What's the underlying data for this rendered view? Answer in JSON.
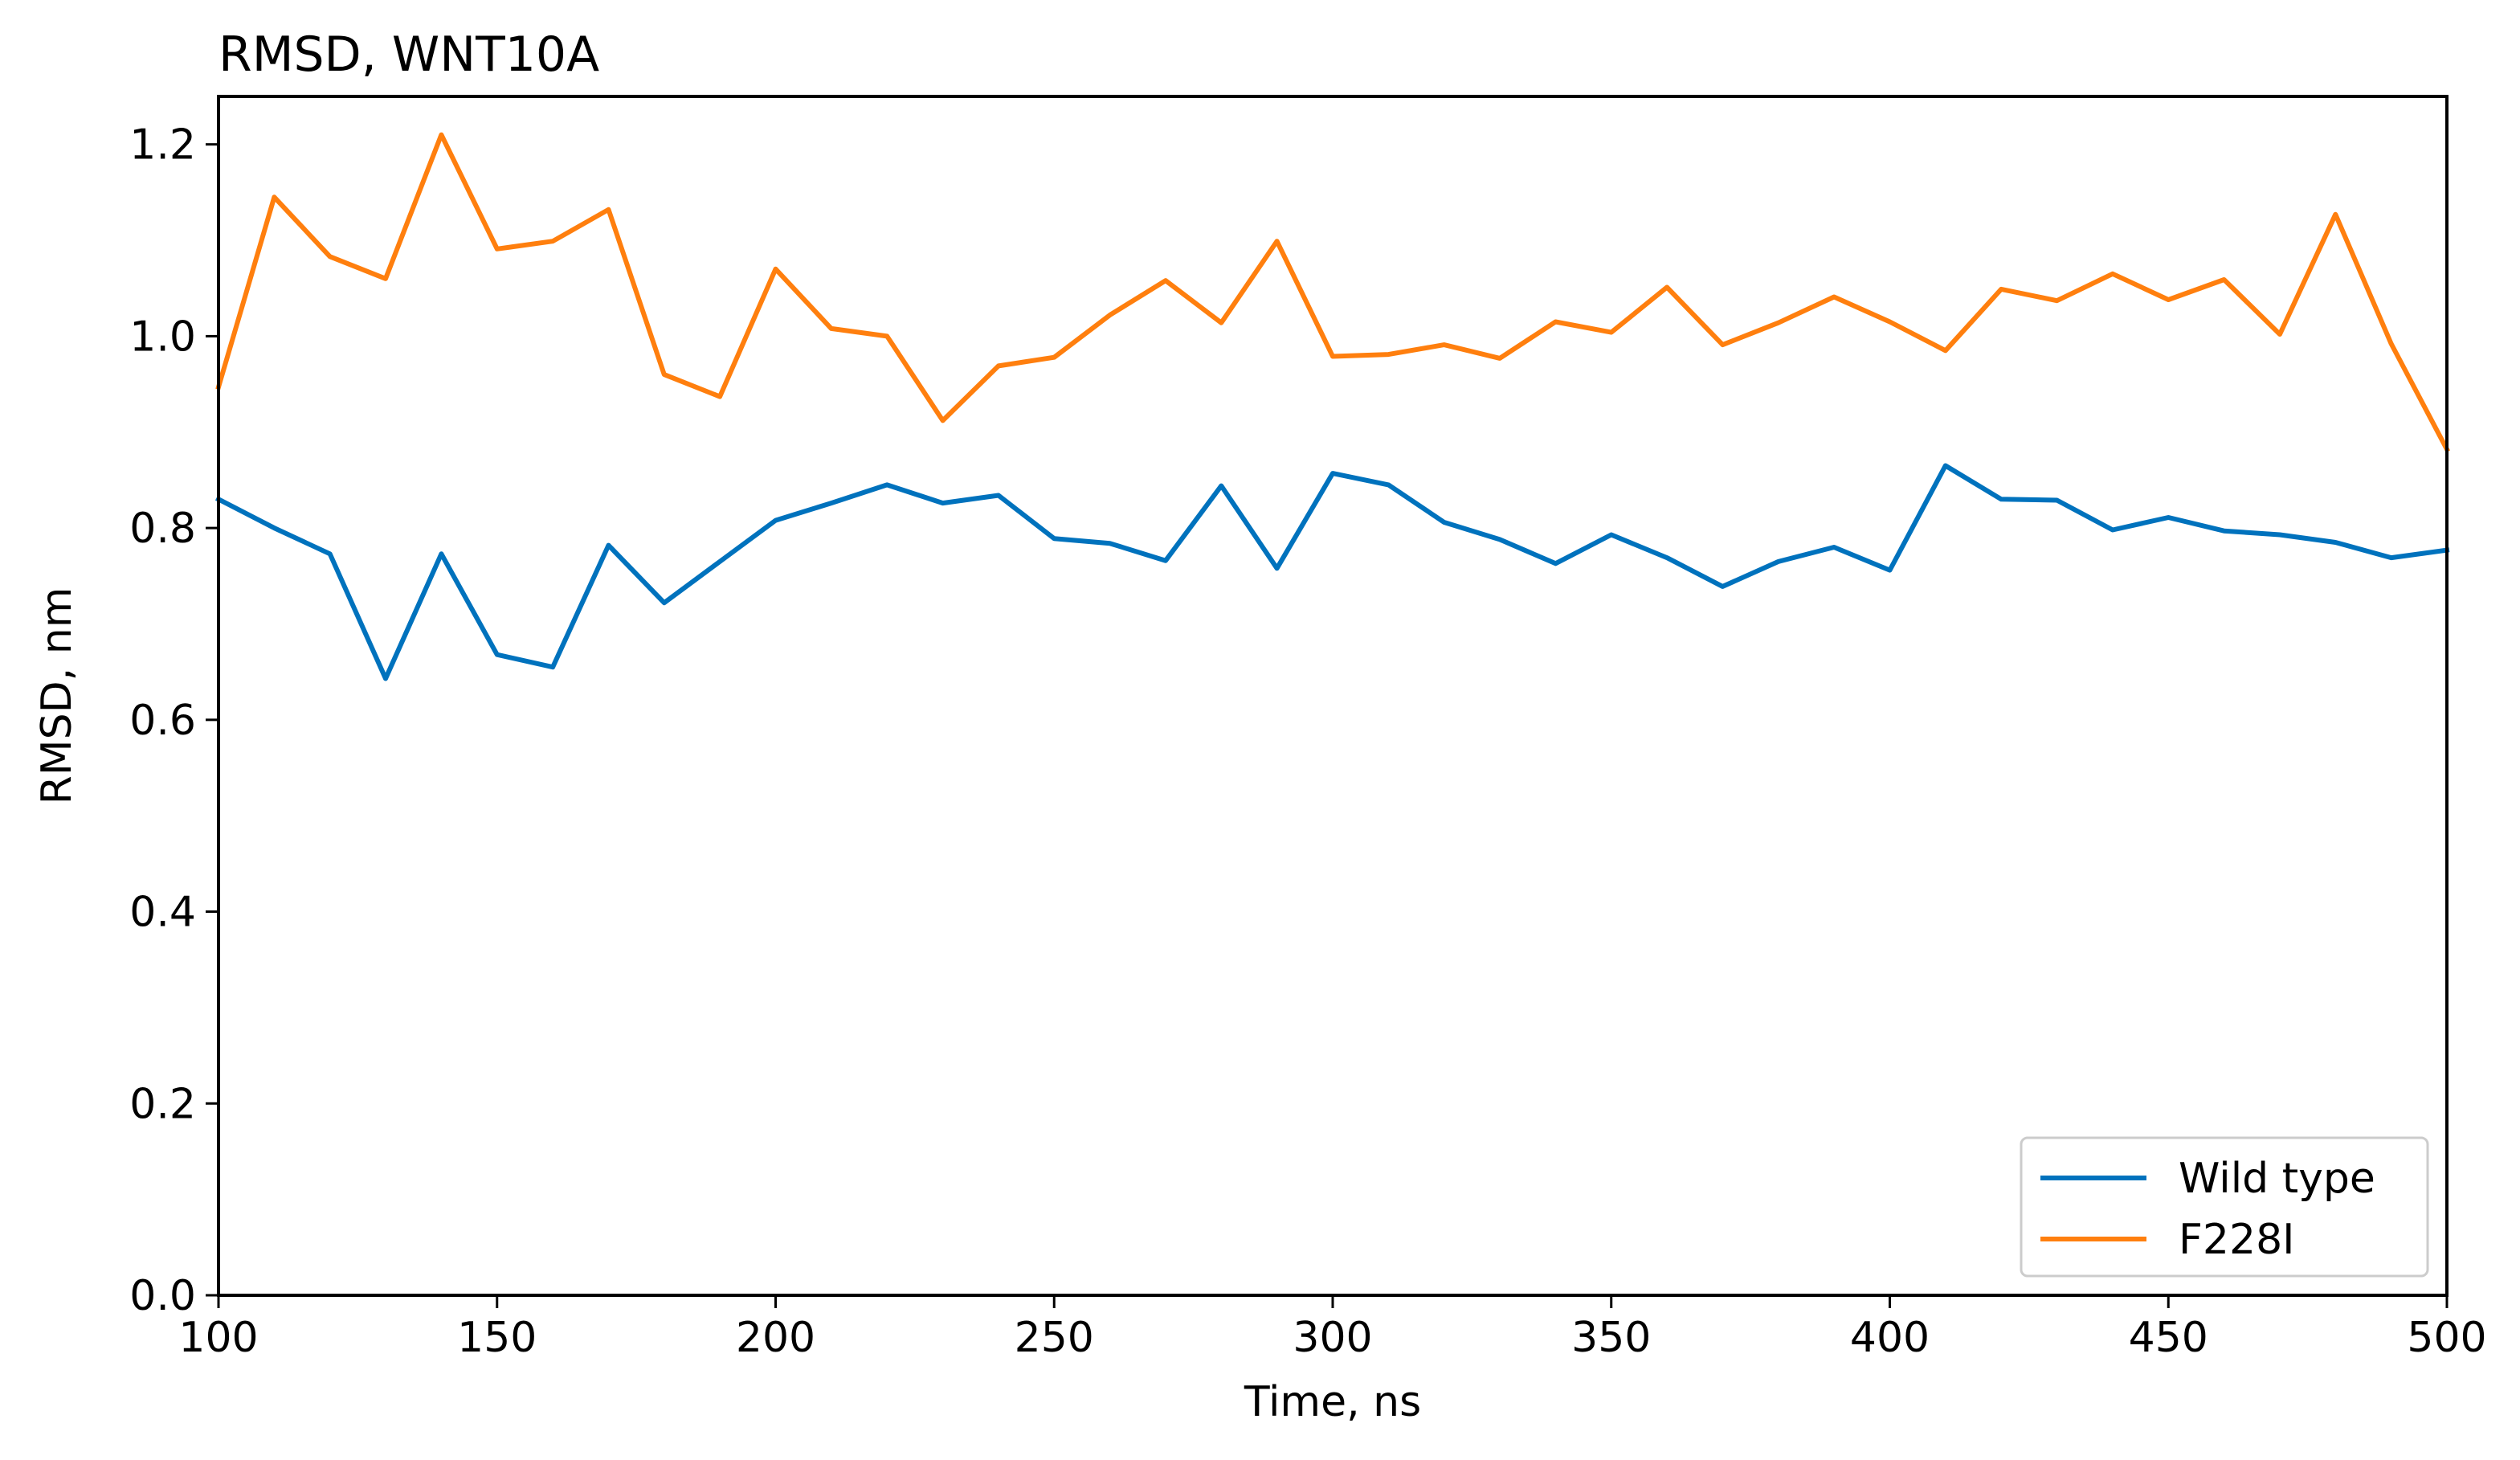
{
  "chart_data": {
    "type": "line",
    "title": "RMSD, WNT10A",
    "xlabel": "Time, ns",
    "ylabel": "RMSD, nm",
    "xlim": [
      100,
      500
    ],
    "ylim": [
      0.0,
      1.25
    ],
    "xticks": [
      100,
      150,
      200,
      250,
      300,
      350,
      400,
      450,
      500
    ],
    "yticks": [
      0.0,
      0.2,
      0.4,
      0.6,
      0.8,
      1.0,
      1.2
    ],
    "xtick_labels": [
      "100",
      "150",
      "200",
      "250",
      "300",
      "350",
      "400",
      "450",
      "500"
    ],
    "ytick_labels": [
      "0.0",
      "0.2",
      "0.4",
      "0.6",
      "0.8",
      "1.0",
      "1.2"
    ],
    "grid": false,
    "legend_position": "lower-right",
    "x": [
      100,
      110,
      120,
      130,
      140,
      150,
      160,
      170,
      180,
      190,
      200,
      210,
      220,
      230,
      240,
      250,
      260,
      270,
      280,
      290,
      300,
      310,
      320,
      330,
      340,
      350,
      360,
      370,
      380,
      390,
      400,
      410,
      420,
      430,
      440,
      450,
      460,
      470,
      480,
      490,
      500
    ],
    "series": [
      {
        "name": "Wild type",
        "color": "#0072bd",
        "values": [
          0.83,
          0.8,
          0.773,
          0.643,
          0.773,
          0.668,
          0.655,
          0.782,
          0.722,
          0.765,
          0.808,
          0.826,
          0.845,
          0.826,
          0.834,
          0.789,
          0.784,
          0.766,
          0.844,
          0.758,
          0.857,
          0.845,
          0.806,
          0.788,
          0.763,
          0.793,
          0.769,
          0.739,
          0.765,
          0.78,
          0.756,
          0.865,
          0.83,
          0.829,
          0.798,
          0.811,
          0.797,
          0.793,
          0.785,
          0.769,
          0.777
        ]
      },
      {
        "name": "F228I",
        "color": "#ff7f0e",
        "values": [
          0.947,
          1.145,
          1.083,
          1.06,
          1.21,
          1.091,
          1.099,
          1.132,
          0.96,
          0.937,
          1.07,
          1.008,
          1.0,
          0.912,
          0.969,
          0.978,
          1.022,
          1.058,
          1.014,
          1.099,
          0.979,
          0.981,
          0.991,
          0.977,
          1.015,
          1.004,
          1.051,
          0.991,
          1.014,
          1.041,
          1.015,
          0.985,
          1.049,
          1.037,
          1.065,
          1.038,
          1.059,
          1.002,
          1.127,
          0.992,
          0.882
        ]
      }
    ]
  }
}
